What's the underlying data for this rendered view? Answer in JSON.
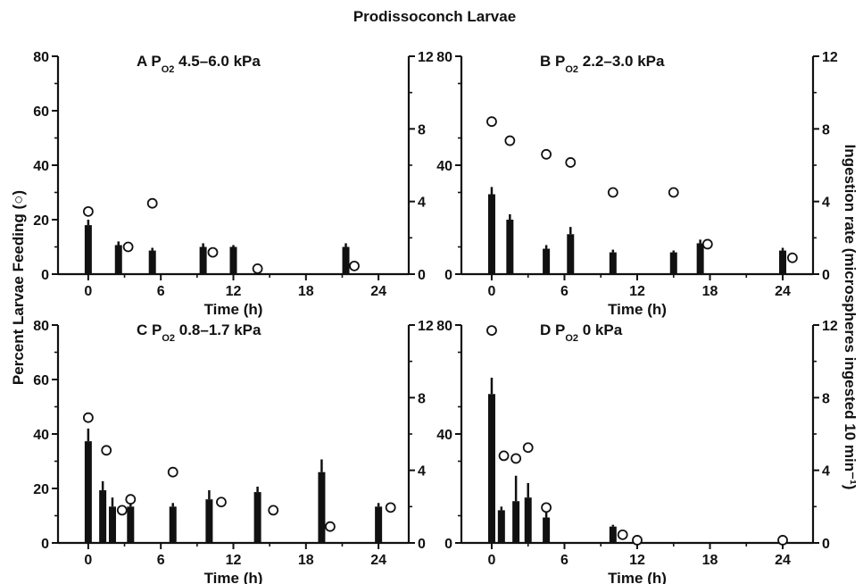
{
  "figure_title": "Prodissoconch Larvae",
  "x_label": "Time  (h)",
  "left_ylabel": "Percent Larvae Feeding (○)",
  "right_ylabel": "Ingestion rate (microspheres ingested 10 min⁻¹)",
  "colors": {
    "bar": "#111111",
    "marker": "#111111",
    "background": "#ffffff"
  },
  "chart_data": [
    {
      "type": "bar",
      "letter": "A",
      "po2_prefix": "P",
      "po2_sub": "O2",
      "po2_value": "4.5–6.0 kPa",
      "x_ticks": [
        "0",
        "6",
        "12",
        "18",
        "24"
      ],
      "xlim": [
        -2.5,
        26.5
      ],
      "left_ticks": [
        "0",
        "20",
        "40",
        "60",
        "80"
      ],
      "left_ylim": [
        0,
        80
      ],
      "right_ticks": [
        "0",
        "4",
        "8",
        "12"
      ],
      "right_ylim": [
        0,
        12
      ],
      "series": [
        {
          "name": "Ingestion rate",
          "axis": "right",
          "render": "bar",
          "x": [
            0,
            2.5,
            5.3,
            9.5,
            12.0,
            21.3
          ],
          "values": [
            2.7,
            1.6,
            1.3,
            1.5,
            1.5,
            1.5
          ],
          "error": [
            0.3,
            0.2,
            0.15,
            0.2,
            0.1,
            0.2
          ]
        },
        {
          "name": "Percent Larvae Feeding",
          "axis": "left",
          "render": "scatter",
          "x": [
            0,
            3.3,
            5.3,
            10.3,
            14.0,
            22.0
          ],
          "values": [
            23,
            10,
            26,
            8,
            2,
            3
          ]
        }
      ]
    },
    {
      "type": "bar",
      "letter": "B",
      "po2_prefix": "P",
      "po2_sub": "O2",
      "po2_value": "2.2–3.0 kPa",
      "x_ticks": [
        "0",
        "6",
        "12",
        "18",
        "24"
      ],
      "xlim": [
        -2.5,
        26.5
      ],
      "left_ticks": [
        "0",
        "40",
        "80"
      ],
      "left_ylim": [
        0,
        80
      ],
      "right_ticks": [
        "0",
        "4",
        "8",
        "12"
      ],
      "right_ylim": [
        0,
        12
      ],
      "series": [
        {
          "name": "Ingestion rate",
          "axis": "right",
          "render": "bar",
          "x": [
            0,
            1.5,
            4.5,
            6.5,
            10.0,
            15.0,
            17.2,
            24.0
          ],
          "values": [
            4.4,
            3.0,
            1.4,
            2.2,
            1.2,
            1.2,
            1.7,
            1.3
          ],
          "error": [
            0.4,
            0.3,
            0.2,
            0.4,
            0.15,
            0.1,
            0.2,
            0.15
          ]
        },
        {
          "name": "Percent Larvae Feeding",
          "axis": "left",
          "render": "scatter",
          "x": [
            0,
            1.5,
            4.5,
            6.5,
            10.0,
            15.0,
            17.8,
            24.8
          ],
          "values": [
            56,
            49,
            44,
            41,
            30,
            30,
            11,
            6
          ]
        }
      ]
    },
    {
      "type": "bar",
      "letter": "C",
      "po2_prefix": "P",
      "po2_sub": "O2",
      "po2_value": "0.8–1.7 kPa",
      "x_ticks": [
        "0",
        "6",
        "12",
        "18",
        "24"
      ],
      "xlim": [
        -2.5,
        26.5
      ],
      "left_ticks": [
        "0",
        "20",
        "40",
        "60",
        "80"
      ],
      "left_ylim": [
        0,
        80
      ],
      "right_ticks": [
        "0",
        "4",
        "8",
        "12"
      ],
      "right_ylim": [
        0,
        12
      ],
      "series": [
        {
          "name": "Ingestion rate",
          "axis": "right",
          "render": "bar",
          "x": [
            0,
            1.2,
            2.0,
            3.5,
            7.0,
            10.0,
            14.0,
            19.3,
            24.0
          ],
          "values": [
            5.6,
            2.9,
            2.0,
            2.0,
            2.0,
            2.4,
            2.8,
            3.9,
            2.0
          ],
          "error": [
            0.7,
            0.5,
            0.5,
            0.3,
            0.2,
            0.5,
            0.3,
            0.7,
            0.2
          ]
        },
        {
          "name": "Percent Larvae Feeding",
          "axis": "left",
          "render": "scatter",
          "x": [
            0,
            1.5,
            2.8,
            3.5,
            7.0,
            11.0,
            15.3,
            20.0,
            25.0
          ],
          "values": [
            46,
            34,
            12,
            16,
            26,
            15,
            12,
            6,
            13
          ]
        }
      ]
    },
    {
      "type": "bar",
      "letter": "D",
      "po2_prefix": "P",
      "po2_sub": "O2",
      "po2_value": "0 kPa",
      "x_ticks": [
        "0",
        "6",
        "12",
        "18",
        "24"
      ],
      "xlim": [
        -2.5,
        26.5
      ],
      "left_ticks": [
        "0",
        "40",
        "80"
      ],
      "left_ylim": [
        0,
        80
      ],
      "right_ticks": [
        "0",
        "4",
        "8",
        "12"
      ],
      "right_ylim": [
        0,
        12
      ],
      "series": [
        {
          "name": "Ingestion rate",
          "axis": "right",
          "render": "bar",
          "x": [
            0,
            0.8,
            2.0,
            3.0,
            4.5,
            10.0
          ],
          "values": [
            8.2,
            1.8,
            2.3,
            2.5,
            1.4,
            0.9
          ],
          "error": [
            0.9,
            0.2,
            1.4,
            0.8,
            0.3,
            0.1
          ]
        },
        {
          "name": "Percent Larvae Feeding",
          "axis": "left",
          "render": "scatter",
          "x": [
            0,
            1.0,
            2.0,
            3.0,
            4.5,
            10.8,
            12.0,
            24.0
          ],
          "values": [
            78,
            32,
            31,
            35,
            13,
            3,
            1,
            1
          ]
        }
      ]
    }
  ]
}
